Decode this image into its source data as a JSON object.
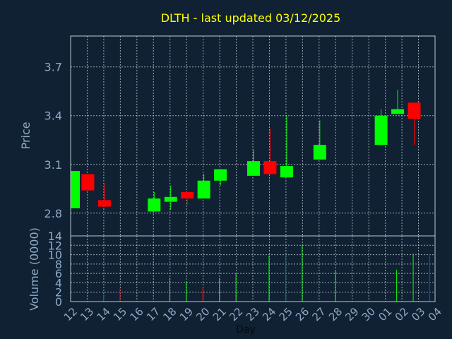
{
  "chart_data": {
    "type": "candlestick",
    "title": "DLTH - last updated 03/12/2025",
    "price_axis": {
      "ylabel": "Price",
      "ylim": [
        2.66,
        3.89
      ],
      "ticks": [
        2.8,
        3.1,
        3.4,
        3.7
      ],
      "tick_labels": [
        "2.8",
        "3.1",
        "3.4",
        "3.7"
      ]
    },
    "volume_axis": {
      "ylabel": "Volume (0000)",
      "ylim": [
        0,
        14
      ],
      "ticks": [
        0,
        2,
        4,
        6,
        8,
        10,
        12,
        14
      ],
      "tick_labels": [
        "0",
        "2",
        "4",
        "6",
        "8",
        "10",
        "12",
        "14"
      ]
    },
    "xlabel": "Day",
    "x_tick_labels": [
      "12",
      "13",
      "14",
      "15",
      "16",
      "17",
      "18",
      "19",
      "20",
      "21",
      "22",
      "23",
      "24",
      "25",
      "26",
      "27",
      "28",
      "29",
      "30",
      "01",
      "02",
      "03",
      "04"
    ],
    "grid": true,
    "colors": {
      "background": "#0f2133",
      "up": "#00ff00",
      "down": "#ff0000",
      "title": "#ffff00",
      "axis_text": "#8fa9c6",
      "frame": "#c0c8d0",
      "grid": "#c0c8d0"
    },
    "candles": [
      {
        "x": 0.0,
        "open": 2.83,
        "high": 3.06,
        "low": 2.83,
        "close": 3.06,
        "volume": 0
      },
      {
        "x": 1.0,
        "open": 3.04,
        "high": 3.04,
        "low": 2.94,
        "close": 2.94,
        "volume": 1.5
      },
      {
        "x": 2.0,
        "open": 2.88,
        "high": 2.98,
        "low": 2.84,
        "close": 2.84,
        "volume": 2.8
      },
      {
        "x": 5.0,
        "open": 2.81,
        "high": 2.93,
        "low": 2.81,
        "close": 2.89,
        "volume": 5.0
      },
      {
        "x": 6.0,
        "open": 2.87,
        "high": 2.97,
        "low": 2.82,
        "close": 2.9,
        "volume": 4.2
      },
      {
        "x": 7.0,
        "open": 2.93,
        "high": 2.93,
        "low": 2.85,
        "close": 2.89,
        "volume": 3.0
      },
      {
        "x": 8.0,
        "open": 2.89,
        "high": 3.04,
        "low": 2.89,
        "close": 3.0,
        "volume": 5.0
      },
      {
        "x": 9.0,
        "open": 3.0,
        "high": 3.07,
        "low": 2.97,
        "close": 3.07,
        "volume": 6.0
      },
      {
        "x": 11.0,
        "open": 3.03,
        "high": 3.19,
        "low": 3.03,
        "close": 3.12,
        "volume": 9.8
      },
      {
        "x": 12.0,
        "open": 3.12,
        "high": 3.32,
        "low": 3.04,
        "close": 3.04,
        "volume": 10.0
      },
      {
        "x": 13.0,
        "open": 3.02,
        "high": 3.4,
        "low": 3.02,
        "close": 3.09,
        "volume": 12.1
      },
      {
        "x": 15.0,
        "open": 3.13,
        "high": 3.37,
        "low": 3.13,
        "close": 3.22,
        "volume": 6.5
      },
      {
        "x": 18.7,
        "open": 3.22,
        "high": 3.44,
        "low": 3.22,
        "close": 3.4,
        "volume": 6.8
      },
      {
        "x": 19.7,
        "open": 3.41,
        "high": 3.56,
        "low": 3.41,
        "close": 3.44,
        "volume": 10.2
      },
      {
        "x": 20.7,
        "open": 3.48,
        "high": 3.48,
        "low": 3.22,
        "close": 3.38,
        "volume": 10.0
      }
    ]
  }
}
